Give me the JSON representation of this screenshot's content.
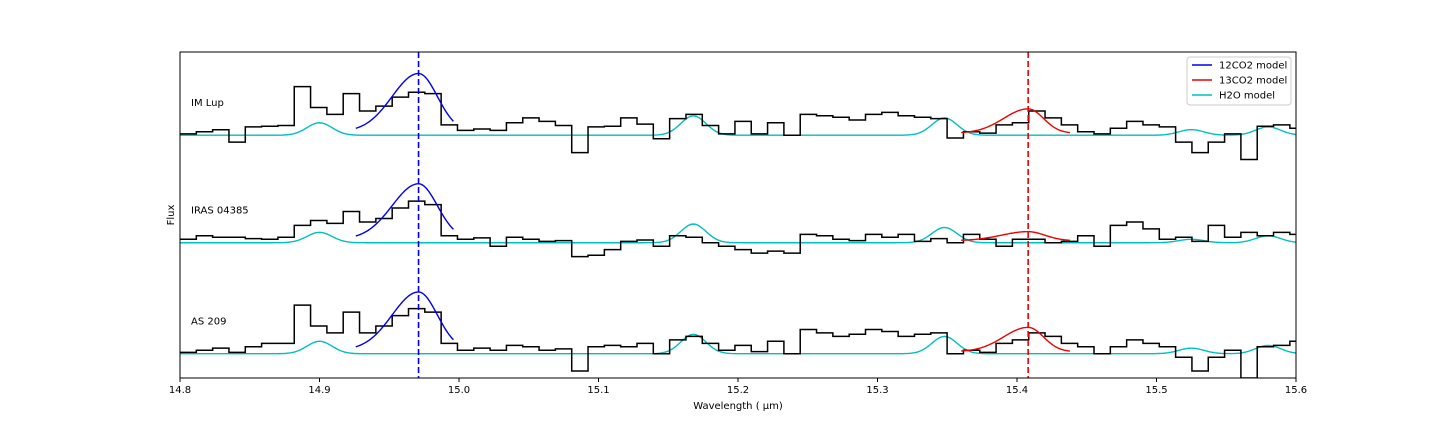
{
  "chart_data": {
    "type": "line",
    "title": "",
    "xlabel": "Wavelength ( μm)",
    "ylabel": "Flux",
    "xlim": [
      14.8,
      15.6
    ],
    "ylim": [
      0,
      4.7
    ],
    "xticks": [
      "14.8",
      "14.9",
      "15.0",
      "15.1",
      "15.2",
      "15.3",
      "15.4",
      "15.5",
      "15.6"
    ],
    "yticks": [],
    "grid": false,
    "legend_placement": "top-right",
    "colors": {
      "observed": "#000000",
      "co2_12": "#0000ee",
      "co2_13": "#ee0000",
      "h2o": "#00bfbf"
    },
    "legend": [
      {
        "label": "12CO2 model",
        "color": "#0000ee"
      },
      {
        "label": "13CO2 model",
        "color": "#ee0000"
      },
      {
        "label": "H2O model",
        "color": "#00bfbf"
      }
    ],
    "vlines": [
      {
        "x": 14.971,
        "color": "#0000ee",
        "style": "dashed"
      },
      {
        "x": 15.408,
        "color": "#ee0000",
        "style": "dashed"
      }
    ],
    "spectra": [
      {
        "name": "IM Lup",
        "offset": 3.5,
        "observed_step": {
          "x_start": 14.8,
          "x_step": 0.0117,
          "values": [
            0.02,
            0.05,
            0.08,
            -0.1,
            0.12,
            0.13,
            0.14,
            0.7,
            0.4,
            0.3,
            0.6,
            0.35,
            0.42,
            0.55,
            0.62,
            0.6,
            0.15,
            0.07,
            0.09,
            0.07,
            0.18,
            0.25,
            0.2,
            0.14,
            -0.25,
            0.12,
            0.13,
            0.25,
            0.16,
            -0.05,
            0.24,
            0.3,
            0.14,
            0.02,
            0.2,
            0.02,
            0.18,
            0.0,
            0.3,
            0.28,
            0.26,
            0.22,
            0.3,
            0.33,
            0.28,
            0.26,
            0.24,
            -0.04,
            0.05,
            0.03,
            0.15,
            0.18,
            0.35,
            0.25,
            0.15,
            0.05,
            0.02,
            0.1,
            0.2,
            0.15,
            0.12,
            -0.1,
            -0.25,
            -0.1,
            0.02,
            -0.35,
            0.13,
            0.15,
            0.1,
            0.0
          ]
        },
        "co2_12_model": {
          "center": 14.971,
          "amplitude": 0.84,
          "sigma": 0.0135
        },
        "co2_13_model": {
          "center": 15.408,
          "amplitude": 0.35,
          "sigma": 0.011
        },
        "h2o_model": {
          "baseline": 0.0,
          "peaks": [
            [
              14.9,
              0.18
            ],
            [
              15.168,
              0.28
            ],
            [
              15.348,
              0.25
            ],
            [
              15.525,
              0.08
            ],
            [
              15.58,
              0.12
            ]
          ]
        }
      },
      {
        "name": "IRAS 04385",
        "offset": 1.95,
        "observed_step": {
          "x_start": 14.8,
          "x_step": 0.0117,
          "values": [
            0.05,
            0.1,
            0.08,
            0.08,
            0.06,
            0.05,
            0.08,
            0.25,
            0.32,
            0.28,
            0.45,
            0.3,
            0.35,
            0.5,
            0.6,
            0.55,
            0.1,
            0.05,
            0.07,
            -0.05,
            0.08,
            0.05,
            0.02,
            0.03,
            -0.2,
            -0.18,
            -0.1,
            0.02,
            0.04,
            -0.05,
            0.1,
            0.08,
            0.0,
            -0.05,
            -0.1,
            -0.15,
            -0.12,
            -0.15,
            0.12,
            0.1,
            0.05,
            0.03,
            0.12,
            0.08,
            0.12,
            0.02,
            0.06,
            0.0,
            0.12,
            0.05,
            -0.05,
            0.05,
            0.05,
            0.0,
            0.02,
            0.1,
            -0.05,
            0.25,
            0.3,
            0.2,
            0.05,
            0.08,
            0.02,
            0.25,
            0.08,
            0.15,
            0.1,
            0.15,
            0.12,
            0.05
          ]
        },
        "co2_12_model": {
          "center": 14.971,
          "amplitude": 0.8,
          "sigma": 0.0135
        },
        "co2_13_model": {
          "center": 15.408,
          "amplitude": 0.13,
          "sigma": 0.012
        },
        "h2o_model": {
          "baseline": 0.0,
          "peaks": [
            [
              14.9,
              0.15
            ],
            [
              15.168,
              0.27
            ],
            [
              15.348,
              0.22
            ],
            [
              15.525,
              0.05
            ],
            [
              15.58,
              0.1
            ]
          ]
        }
      },
      {
        "name": "AS 209",
        "offset": 0.35,
        "observed_step": {
          "x_start": 14.8,
          "x_step": 0.0117,
          "values": [
            0.02,
            0.05,
            0.08,
            0.02,
            0.1,
            0.15,
            0.15,
            0.7,
            0.4,
            0.3,
            0.6,
            0.3,
            0.4,
            0.55,
            0.65,
            0.6,
            0.15,
            0.05,
            0.08,
            0.05,
            0.12,
            0.1,
            0.05,
            0.07,
            -0.25,
            0.1,
            0.12,
            0.1,
            0.15,
            0.0,
            0.2,
            0.25,
            0.15,
            0.05,
            0.12,
            0.03,
            0.18,
            0.0,
            0.35,
            0.3,
            0.25,
            0.28,
            0.35,
            0.32,
            0.25,
            0.28,
            0.3,
            0.0,
            0.05,
            0.02,
            0.15,
            0.2,
            0.3,
            0.25,
            0.15,
            0.1,
            0.0,
            0.1,
            0.2,
            0.15,
            0.1,
            -0.05,
            -0.25,
            -0.05,
            0.05,
            -0.35,
            0.1,
            0.12,
            0.18,
            0.05
          ]
        },
        "co2_12_model": {
          "center": 14.971,
          "amplitude": 0.84,
          "sigma": 0.0135
        },
        "co2_13_model": {
          "center": 15.408,
          "amplitude": 0.35,
          "sigma": 0.011
        },
        "h2o_model": {
          "baseline": 0.0,
          "peaks": [
            [
              14.9,
              0.18
            ],
            [
              15.168,
              0.28
            ],
            [
              15.348,
              0.25
            ],
            [
              15.525,
              0.08
            ],
            [
              15.58,
              0.12
            ]
          ]
        }
      }
    ]
  }
}
